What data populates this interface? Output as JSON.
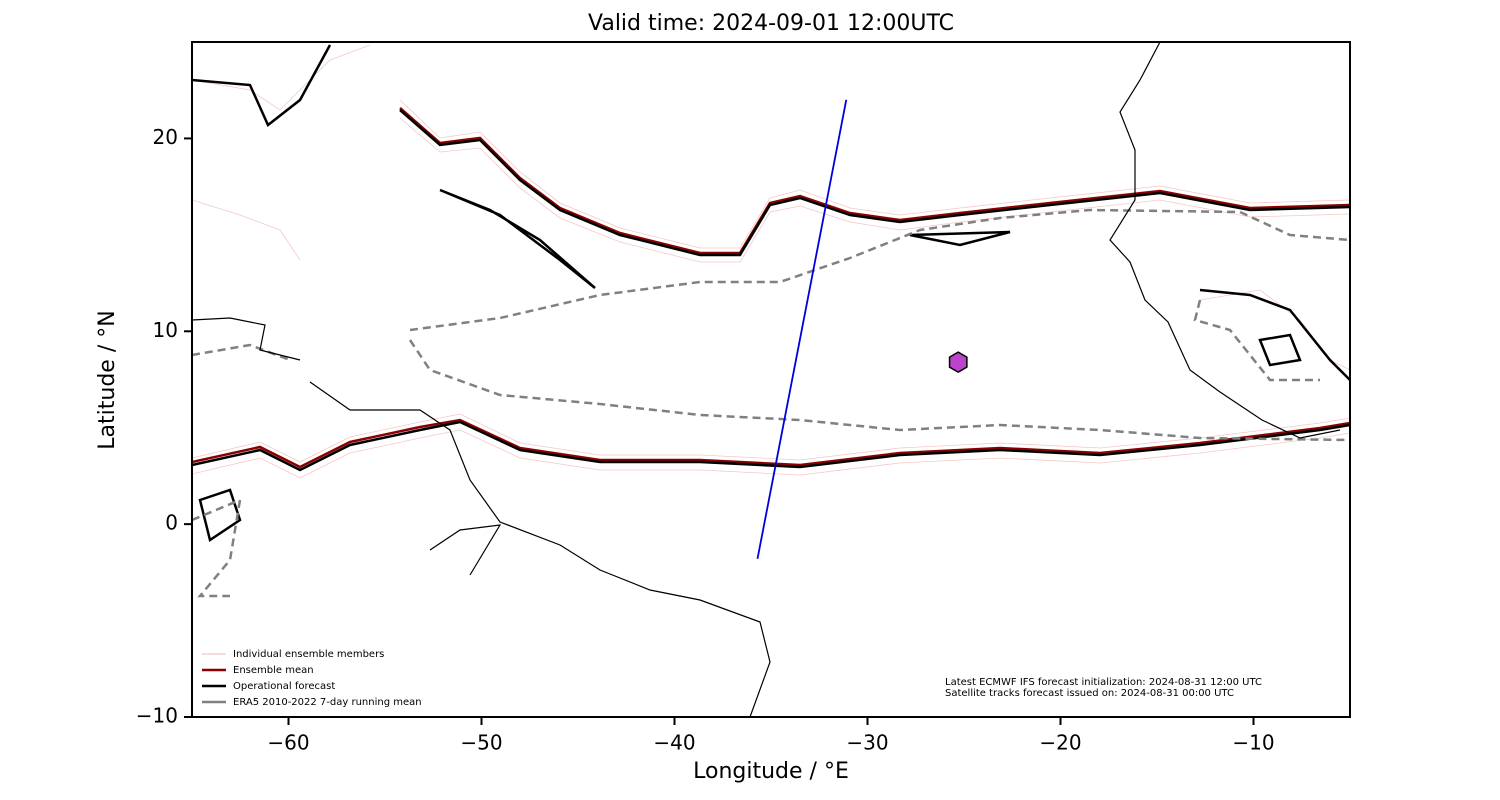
{
  "chart_data": {
    "type": "map",
    "title": "Valid time: 2024-09-01 12:00UTC",
    "xlabel": "Longitude / °E",
    "ylabel": "Latitude / °N",
    "xlim": [
      -65,
      -5
    ],
    "ylim": [
      -10,
      25
    ],
    "xticks": [
      {
        "value": -60,
        "label": "−60"
      },
      {
        "value": -50,
        "label": "−50"
      },
      {
        "value": -40,
        "label": "−40"
      },
      {
        "value": -30,
        "label": "−30"
      },
      {
        "value": -20,
        "label": "−20"
      },
      {
        "value": -10,
        "label": "−10"
      }
    ],
    "yticks": [
      {
        "value": -10,
        "label": "−10"
      },
      0,
      10,
      20
    ],
    "legend": [
      {
        "name": "Individual ensemble members",
        "color": "#e8a0a0"
      },
      {
        "name": "Ensemble mean",
        "color": "#8b0000"
      },
      {
        "name": "Operational forecast",
        "color": "#000000"
      },
      {
        "name": "ERA5 2010-2022 7-day running mean",
        "color": "#808080"
      }
    ],
    "track": {
      "color": "#0000dd",
      "x": [
        -35.7,
        -31.1
      ],
      "y": [
        -1.8,
        22
      ]
    },
    "marker": {
      "color": "#bb44cc",
      "x": -25.3,
      "y": 8.4
    },
    "annotations": [
      "Latest ECMWF IFS forecast initialization: 2024-08-31 12:00 UTC",
      "Satellite tracks forecast issued on: 2024-08-31 00:00 UTC"
    ]
  }
}
